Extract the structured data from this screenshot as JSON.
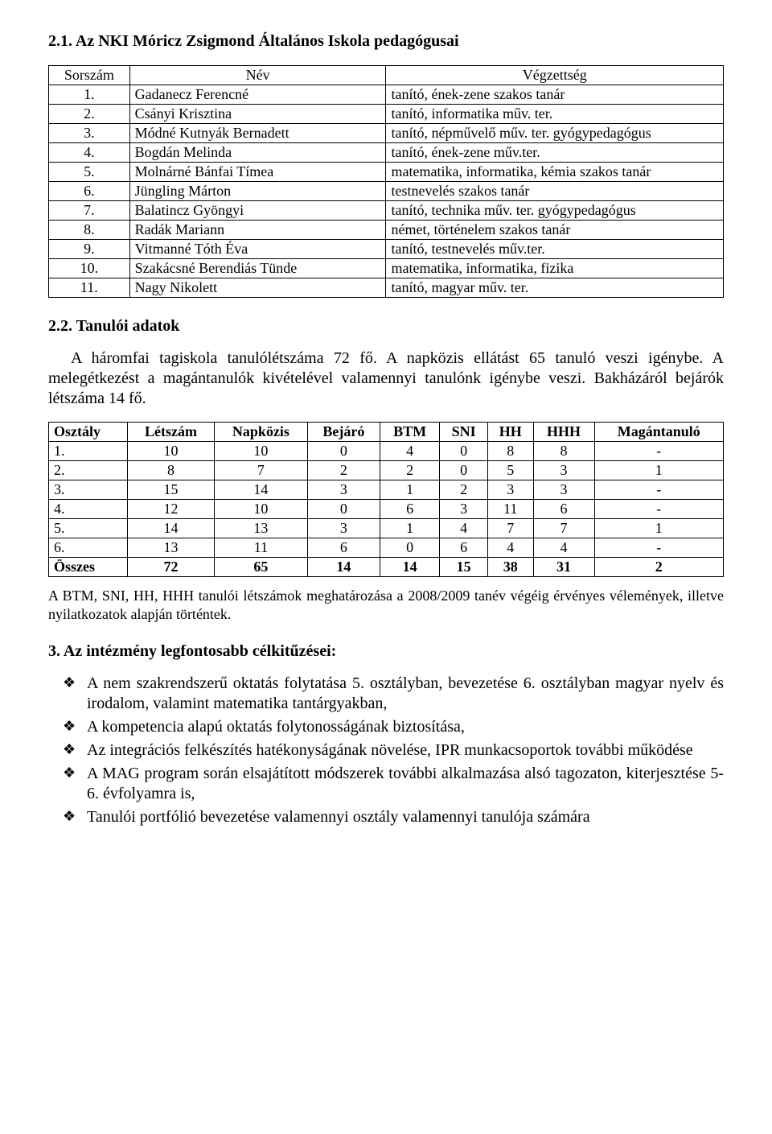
{
  "headings": {
    "h_teachers": "2.1. Az NKI Móricz Zsigmond Általános Iskola pedagógusai",
    "h_students": "2.2. Tanulói adatok",
    "h_goals": "3. Az intézmény legfontosabb célkitűzései:"
  },
  "teachers_table": {
    "columns": [
      "Sorszám",
      "Név",
      "Végzettség"
    ],
    "rows": [
      [
        "1.",
        "Gadanecz Ferencné",
        "tanító, ének-zene szakos tanár"
      ],
      [
        "2.",
        "Csányi Krisztina",
        "tanító, informatika műv. ter."
      ],
      [
        "3.",
        "Módné Kutnyák Bernadett",
        "tanító, népművelő műv. ter. gyógypedagógus"
      ],
      [
        "4.",
        "Bogdán Melinda",
        "tanító, ének-zene műv.ter."
      ],
      [
        "5.",
        "Molnárné Bánfai Tímea",
        "matematika, informatika, kémia szakos tanár"
      ],
      [
        "6.",
        "Jüngling Márton",
        "testnevelés szakos tanár"
      ],
      [
        "7.",
        "Balatincz Gyöngyi",
        "tanító, technika műv. ter. gyógypedagógus"
      ],
      [
        "8.",
        "Radák Mariann",
        "német, történelem szakos tanár"
      ],
      [
        "9.",
        "Vitmanné Tóth Éva",
        "tanító, testnevelés műv.ter."
      ],
      [
        "10.",
        "Szakácsné Berendiás Tünde",
        "matematika, informatika, fizika"
      ],
      [
        "11.",
        "Nagy Nikolett",
        "tanító, magyar műv. ter."
      ]
    ]
  },
  "paragraphs": {
    "p_students": "A háromfai tagiskola tanulólétszáma 72 fő. A napközis ellátást 65 tanuló veszi igénybe. A melegétkezést a magántanulók kivételével valamennyi tanulónk igénybe veszi. Bakházáról bejárók létszáma 14 fő.",
    "p_note": "A BTM, SNI, HH, HHH tanulói létszámok meghatározása a 2008/2009 tanév végéig érvényes vélemények, illetve nyilatkozatok alapján történtek."
  },
  "stats_table": {
    "columns": [
      "Osztály",
      "Létszám",
      "Napközis",
      "Bejáró",
      "BTM",
      "SNI",
      "HH",
      "HHH",
      "Magántanuló"
    ],
    "rows": [
      [
        "1.",
        "10",
        "10",
        "0",
        "4",
        "0",
        "8",
        "8",
        "-"
      ],
      [
        "2.",
        "8",
        "7",
        "2",
        "2",
        "0",
        "5",
        "3",
        "1"
      ],
      [
        "3.",
        "15",
        "14",
        "3",
        "1",
        "2",
        "3",
        "3",
        "-"
      ],
      [
        "4.",
        "12",
        "10",
        "0",
        "6",
        "3",
        "11",
        "6",
        "-"
      ],
      [
        "5.",
        "14",
        "13",
        "3",
        "1",
        "4",
        "7",
        "7",
        "1"
      ],
      [
        "6.",
        "13",
        "11",
        "6",
        "0",
        "6",
        "4",
        "4",
        "-"
      ]
    ],
    "total_row": [
      "Összes",
      "72",
      "65",
      "14",
      "14",
      "15",
      "38",
      "31",
      "2"
    ]
  },
  "goals": [
    "A nem szakrendszerű oktatás folytatása 5. osztályban, bevezetése 6. osztályban magyar nyelv és irodalom, valamint matematika tantárgyakban,",
    "A kompetencia alapú oktatás folytonosságának biztosítása,",
    "Az integrációs felkészítés hatékonyságának növelése, IPR munkacsoportok további működése",
    "A MAG program során elsajátított módszerek további alkalmazása alsó tagozaton, kiterjesztése 5-6. évfolyamra is,",
    "Tanulói portfólió bevezetése valamennyi osztály valamennyi tanulója számára"
  ]
}
